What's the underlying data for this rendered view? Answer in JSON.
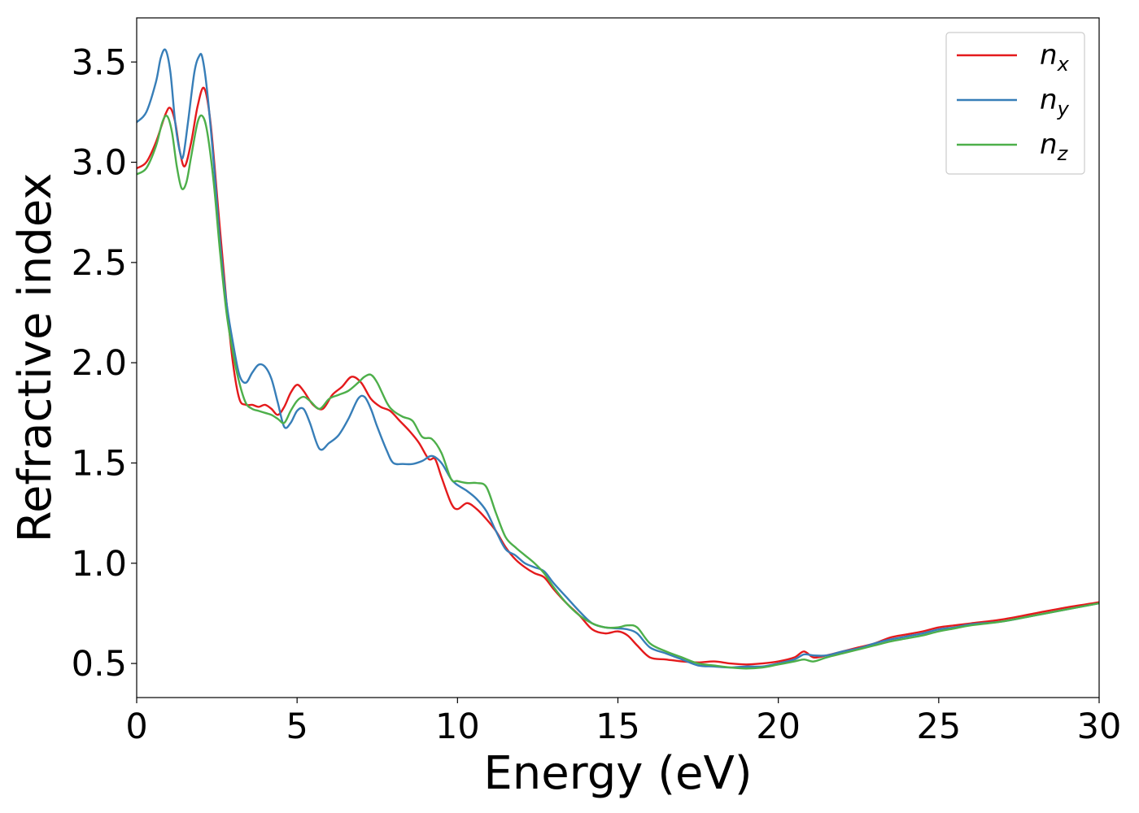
{
  "chart_data": {
    "type": "line",
    "title": "",
    "xlabel": "Energy (eV)",
    "ylabel": "Refractive index",
    "xlim": [
      0,
      30
    ],
    "ylim": [
      0.33,
      3.72
    ],
    "xticks": [
      0,
      5,
      10,
      15,
      20,
      25,
      30
    ],
    "xtick_labels": [
      "0",
      "5",
      "10",
      "15",
      "20",
      "25",
      "30"
    ],
    "yticks": [
      0.5,
      1.0,
      1.5,
      2.0,
      2.5,
      3.0,
      3.5
    ],
    "ytick_labels": [
      "0.5",
      "1.0",
      "1.5",
      "2.0",
      "2.5",
      "3.0",
      "3.5"
    ],
    "grid": false,
    "legend_position": "top-right",
    "series": [
      {
        "name": "n_x",
        "label_base": "n",
        "label_sub": "x",
        "color": "#e41a1c",
        "x": [
          0,
          0.3,
          0.6,
          0.9,
          1.05,
          1.2,
          1.35,
          1.5,
          1.7,
          1.9,
          2.1,
          2.3,
          2.55,
          2.8,
          3.0,
          3.2,
          3.4,
          3.6,
          3.8,
          4.0,
          4.2,
          4.4,
          4.6,
          4.8,
          5.0,
          5.2,
          5.5,
          5.8,
          6.1,
          6.4,
          6.7,
          7.0,
          7.3,
          7.6,
          7.9,
          8.2,
          8.5,
          8.8,
          9.1,
          9.3,
          9.5,
          9.8,
          10.0,
          10.3,
          10.6,
          10.9,
          11.2,
          11.5,
          11.8,
          12.1,
          12.4,
          12.7,
          13.0,
          13.4,
          13.8,
          14.2,
          14.6,
          15.0,
          15.3,
          15.6,
          16.0,
          16.5,
          17.0,
          17.5,
          18.0,
          18.5,
          19.0,
          19.5,
          20.0,
          20.5,
          20.8,
          21.1,
          21.5,
          22.0,
          22.5,
          23.0,
          23.5,
          24.0,
          24.5,
          25.0,
          25.5,
          26.0,
          27.0,
          28.0,
          29.0,
          30.0
        ],
        "y": [
          2.97,
          3.0,
          3.1,
          3.24,
          3.27,
          3.2,
          3.05,
          2.98,
          3.1,
          3.28,
          3.37,
          3.2,
          2.75,
          2.3,
          2.0,
          1.82,
          1.79,
          1.79,
          1.78,
          1.79,
          1.77,
          1.74,
          1.78,
          1.85,
          1.89,
          1.86,
          1.79,
          1.77,
          1.84,
          1.88,
          1.93,
          1.9,
          1.82,
          1.78,
          1.76,
          1.71,
          1.66,
          1.6,
          1.52,
          1.52,
          1.43,
          1.3,
          1.27,
          1.3,
          1.27,
          1.22,
          1.16,
          1.08,
          1.02,
          0.98,
          0.95,
          0.93,
          0.87,
          0.8,
          0.74,
          0.67,
          0.65,
          0.66,
          0.64,
          0.59,
          0.53,
          0.52,
          0.51,
          0.505,
          0.51,
          0.5,
          0.495,
          0.5,
          0.51,
          0.53,
          0.56,
          0.53,
          0.54,
          0.56,
          0.58,
          0.6,
          0.63,
          0.645,
          0.66,
          0.68,
          0.69,
          0.7,
          0.72,
          0.75,
          0.78,
          0.805
        ]
      },
      {
        "name": "n_y",
        "label_base": "n",
        "label_sub": "y",
        "color": "#377eb8",
        "x": [
          0,
          0.3,
          0.6,
          0.75,
          0.9,
          1.05,
          1.2,
          1.35,
          1.45,
          1.6,
          1.8,
          1.95,
          2.05,
          2.2,
          2.4,
          2.6,
          2.8,
          3.0,
          3.2,
          3.4,
          3.6,
          3.8,
          4.0,
          4.2,
          4.4,
          4.6,
          4.8,
          5.0,
          5.2,
          5.4,
          5.7,
          6.0,
          6.3,
          6.6,
          6.9,
          7.1,
          7.3,
          7.5,
          7.8,
          8.0,
          8.3,
          8.6,
          8.9,
          9.2,
          9.5,
          9.8,
          10.0,
          10.3,
          10.6,
          10.9,
          11.2,
          11.5,
          11.8,
          12.1,
          12.4,
          12.7,
          13.0,
          13.4,
          13.8,
          14.2,
          14.6,
          15.0,
          15.3,
          15.6,
          16.0,
          16.5,
          17.0,
          17.5,
          18.0,
          18.5,
          19.0,
          19.5,
          20.0,
          20.5,
          20.8,
          21.1,
          21.5,
          22.0,
          22.5,
          23.0,
          23.5,
          24.0,
          24.5,
          25.0,
          25.5,
          26.0,
          27.0,
          28.0,
          29.0,
          30.0
        ],
        "y": [
          3.2,
          3.25,
          3.4,
          3.52,
          3.56,
          3.45,
          3.2,
          3.05,
          3.03,
          3.2,
          3.45,
          3.53,
          3.52,
          3.35,
          3.0,
          2.6,
          2.3,
          2.1,
          1.94,
          1.9,
          1.95,
          1.99,
          1.98,
          1.92,
          1.8,
          1.68,
          1.7,
          1.76,
          1.77,
          1.7,
          1.57,
          1.6,
          1.64,
          1.72,
          1.82,
          1.83,
          1.77,
          1.68,
          1.56,
          1.5,
          1.495,
          1.495,
          1.51,
          1.535,
          1.5,
          1.42,
          1.39,
          1.36,
          1.32,
          1.26,
          1.16,
          1.07,
          1.04,
          1.0,
          0.98,
          0.96,
          0.9,
          0.83,
          0.76,
          0.7,
          0.68,
          0.675,
          0.67,
          0.65,
          0.58,
          0.55,
          0.52,
          0.49,
          0.485,
          0.48,
          0.485,
          0.485,
          0.5,
          0.52,
          0.545,
          0.54,
          0.54,
          0.56,
          0.575,
          0.6,
          0.62,
          0.635,
          0.65,
          0.67,
          0.68,
          0.695,
          0.71,
          0.74,
          0.77,
          0.8
        ]
      },
      {
        "name": "n_z",
        "label_base": "n",
        "label_sub": "z",
        "color": "#4daf4a",
        "x": [
          0,
          0.3,
          0.6,
          0.8,
          0.95,
          1.1,
          1.25,
          1.4,
          1.55,
          1.7,
          1.9,
          2.05,
          2.2,
          2.4,
          2.6,
          2.8,
          3.0,
          3.2,
          3.4,
          3.6,
          3.8,
          4.0,
          4.2,
          4.4,
          4.6,
          4.8,
          5.0,
          5.2,
          5.4,
          5.7,
          6.0,
          6.3,
          6.6,
          6.9,
          7.1,
          7.3,
          7.5,
          7.8,
          8.0,
          8.3,
          8.6,
          8.9,
          9.2,
          9.5,
          9.8,
          10.0,
          10.3,
          10.6,
          10.9,
          11.2,
          11.5,
          11.8,
          12.1,
          12.4,
          12.7,
          13.0,
          13.4,
          13.8,
          14.2,
          14.6,
          15.0,
          15.3,
          15.6,
          16.0,
          16.5,
          17.0,
          17.5,
          18.0,
          18.5,
          19.0,
          19.5,
          20.0,
          20.5,
          20.8,
          21.1,
          21.5,
          22.0,
          22.5,
          23.0,
          23.5,
          24.0,
          24.5,
          25.0,
          25.5,
          26.0,
          27.0,
          28.0,
          29.0,
          30.0
        ],
        "y": [
          2.94,
          2.97,
          3.08,
          3.2,
          3.23,
          3.15,
          2.98,
          2.87,
          2.9,
          3.03,
          3.2,
          3.23,
          3.15,
          2.9,
          2.55,
          2.25,
          2.05,
          1.9,
          1.8,
          1.77,
          1.76,
          1.75,
          1.74,
          1.72,
          1.7,
          1.76,
          1.81,
          1.83,
          1.81,
          1.77,
          1.82,
          1.84,
          1.86,
          1.9,
          1.93,
          1.94,
          1.9,
          1.8,
          1.76,
          1.73,
          1.71,
          1.63,
          1.62,
          1.55,
          1.42,
          1.41,
          1.4,
          1.4,
          1.38,
          1.25,
          1.13,
          1.08,
          1.04,
          1.0,
          0.95,
          0.88,
          0.8,
          0.74,
          0.7,
          0.68,
          0.68,
          0.69,
          0.68,
          0.6,
          0.56,
          0.53,
          0.5,
          0.49,
          0.48,
          0.475,
          0.48,
          0.495,
          0.51,
          0.52,
          0.51,
          0.53,
          0.55,
          0.57,
          0.59,
          0.61,
          0.625,
          0.64,
          0.66,
          0.675,
          0.69,
          0.71,
          0.74,
          0.77,
          0.8
        ]
      }
    ]
  }
}
